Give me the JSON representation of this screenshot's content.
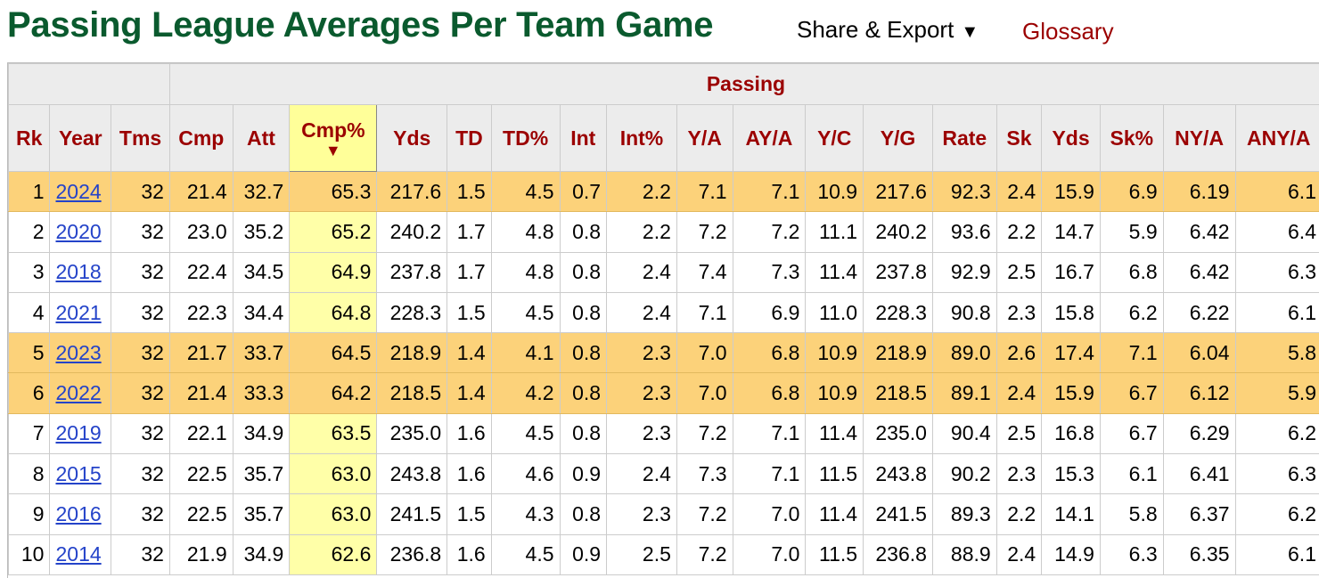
{
  "header": {
    "title": "Passing League Averages Per Team Game",
    "share_label": "Share & Export",
    "share_arrow": "▼",
    "glossary_label": "Glossary"
  },
  "table": {
    "group_label": "Passing",
    "sort_arrow": "▼",
    "columns": [
      "Rk",
      "Year",
      "Tms",
      "Cmp",
      "Att",
      "Cmp%",
      "Yds",
      "TD",
      "TD%",
      "Int",
      "Int%",
      "Y/A",
      "AY/A",
      "Y/C",
      "Y/G",
      "Rate",
      "Sk",
      "Yds",
      "Sk%",
      "NY/A",
      "ANY/A"
    ],
    "rows": [
      {
        "highlight": true,
        "cells": [
          "1",
          "2024",
          "32",
          "21.4",
          "32.7",
          "65.3",
          "217.6",
          "1.5",
          "4.5",
          "0.7",
          "2.2",
          "7.1",
          "7.1",
          "10.9",
          "217.6",
          "92.3",
          "2.4",
          "15.9",
          "6.9",
          "6.19",
          "6.1"
        ]
      },
      {
        "highlight": false,
        "cells": [
          "2",
          "2020",
          "32",
          "23.0",
          "35.2",
          "65.2",
          "240.2",
          "1.7",
          "4.8",
          "0.8",
          "2.2",
          "7.2",
          "7.2",
          "11.1",
          "240.2",
          "93.6",
          "2.2",
          "14.7",
          "5.9",
          "6.42",
          "6.4"
        ]
      },
      {
        "highlight": false,
        "cells": [
          "3",
          "2018",
          "32",
          "22.4",
          "34.5",
          "64.9",
          "237.8",
          "1.7",
          "4.8",
          "0.8",
          "2.4",
          "7.4",
          "7.3",
          "11.4",
          "237.8",
          "92.9",
          "2.5",
          "16.7",
          "6.8",
          "6.42",
          "6.3"
        ]
      },
      {
        "highlight": false,
        "cells": [
          "4",
          "2021",
          "32",
          "22.3",
          "34.4",
          "64.8",
          "228.3",
          "1.5",
          "4.5",
          "0.8",
          "2.4",
          "7.1",
          "6.9",
          "11.0",
          "228.3",
          "90.8",
          "2.3",
          "15.8",
          "6.2",
          "6.22",
          "6.1"
        ]
      },
      {
        "highlight": true,
        "cells": [
          "5",
          "2023",
          "32",
          "21.7",
          "33.7",
          "64.5",
          "218.9",
          "1.4",
          "4.1",
          "0.8",
          "2.3",
          "7.0",
          "6.8",
          "10.9",
          "218.9",
          "89.0",
          "2.6",
          "17.4",
          "7.1",
          "6.04",
          "5.8"
        ]
      },
      {
        "highlight": true,
        "cells": [
          "6",
          "2022",
          "32",
          "21.4",
          "33.3",
          "64.2",
          "218.5",
          "1.4",
          "4.2",
          "0.8",
          "2.3",
          "7.0",
          "6.8",
          "10.9",
          "218.5",
          "89.1",
          "2.4",
          "15.9",
          "6.7",
          "6.12",
          "5.9"
        ]
      },
      {
        "highlight": false,
        "cells": [
          "7",
          "2019",
          "32",
          "22.1",
          "34.9",
          "63.5",
          "235.0",
          "1.6",
          "4.5",
          "0.8",
          "2.3",
          "7.2",
          "7.1",
          "11.4",
          "235.0",
          "90.4",
          "2.5",
          "16.8",
          "6.7",
          "6.29",
          "6.2"
        ]
      },
      {
        "highlight": false,
        "cells": [
          "8",
          "2015",
          "32",
          "22.5",
          "35.7",
          "63.0",
          "243.8",
          "1.6",
          "4.6",
          "0.9",
          "2.4",
          "7.3",
          "7.1",
          "11.5",
          "243.8",
          "90.2",
          "2.3",
          "15.3",
          "6.1",
          "6.41",
          "6.3"
        ]
      },
      {
        "highlight": false,
        "cells": [
          "9",
          "2016",
          "32",
          "22.5",
          "35.7",
          "63.0",
          "241.5",
          "1.5",
          "4.3",
          "0.8",
          "2.3",
          "7.2",
          "7.0",
          "11.4",
          "241.5",
          "89.3",
          "2.2",
          "14.1",
          "5.8",
          "6.37",
          "6.2"
        ]
      },
      {
        "highlight": false,
        "cells": [
          "10",
          "2014",
          "32",
          "21.9",
          "34.9",
          "62.6",
          "236.8",
          "1.6",
          "4.5",
          "0.9",
          "2.5",
          "7.2",
          "7.0",
          "11.5",
          "236.8",
          "88.9",
          "2.4",
          "14.9",
          "6.3",
          "6.35",
          "6.1"
        ]
      }
    ]
  },
  "colors": {
    "title": "#0a5a2e",
    "header_text": "#9b0000",
    "highlight_row": "#fcd27a",
    "sorted_column": "#ffffa8",
    "link": "#2443c9"
  }
}
